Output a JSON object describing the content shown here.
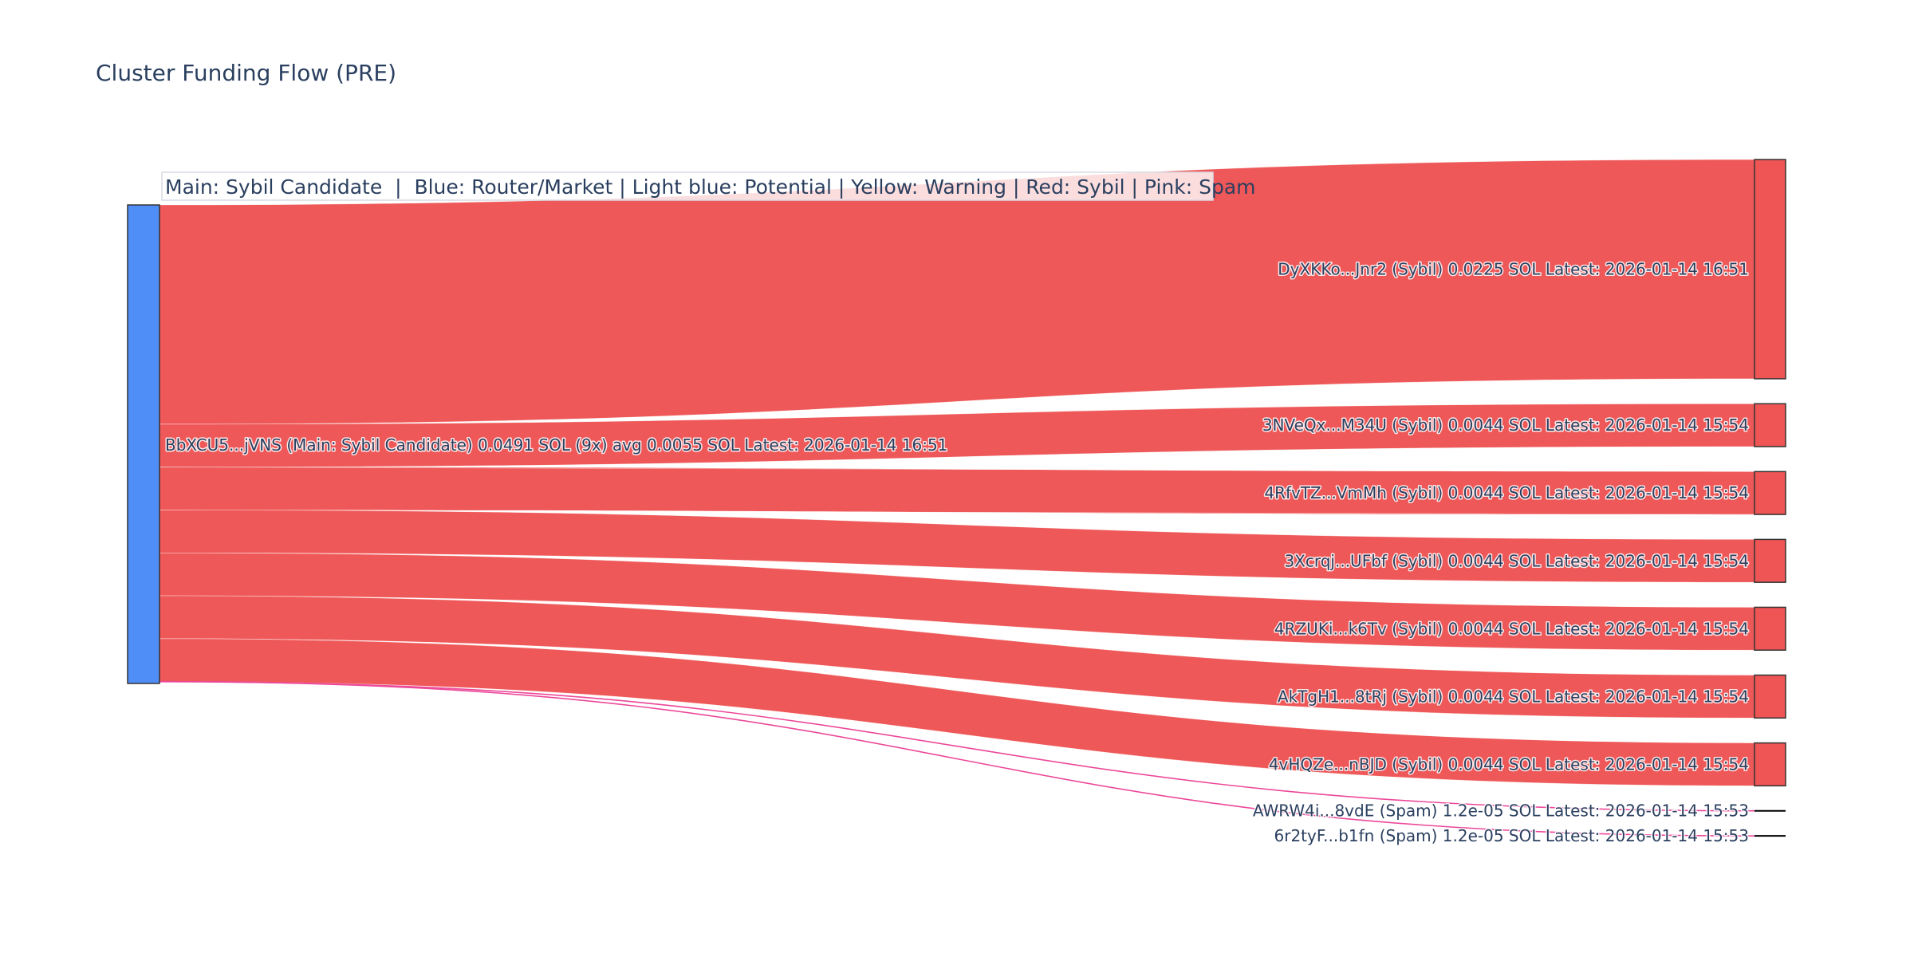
{
  "chart_data": {
    "type": "sankey",
    "title": "Cluster Funding Flow (PRE)",
    "annotation": "Main: Sybil Candidate  |  Blue: Router/Market | Light blue: Potential | Yellow: Warning | Red: Sybil | Pink: Spam",
    "colors": {
      "main_node": "#4f8ef7",
      "sybil": "#ef5555",
      "spam_link": "#ec4899",
      "node_outline": "#333333"
    },
    "source": {
      "label": "BbXCU5...jVNS (Main: Sybil Candidate) 0.0491 SOL (9x) avg 0.0055 SOL Latest: 2026-01-14 16:51",
      "value": 0.0491
    },
    "targets": [
      {
        "label": "DyXKKo...Jnr2 (Sybil) 0.0225 SOL Latest: 2026-01-14 16:51",
        "value": 0.0225,
        "type": "sybil"
      },
      {
        "label": "3NVeQx...M34U (Sybil) 0.0044 SOL Latest: 2026-01-14 15:54",
        "value": 0.0044,
        "type": "sybil"
      },
      {
        "label": "4RfvTZ...VmMh (Sybil) 0.0044 SOL Latest: 2026-01-14 15:54",
        "value": 0.0044,
        "type": "sybil"
      },
      {
        "label": "3Xcrqj...UFbf (Sybil) 0.0044 SOL Latest: 2026-01-14 15:54",
        "value": 0.0044,
        "type": "sybil"
      },
      {
        "label": "4RZUKi...k6Tv (Sybil) 0.0044 SOL Latest: 2026-01-14 15:54",
        "value": 0.0044,
        "type": "sybil"
      },
      {
        "label": "AkTgH1...8tRj (Sybil) 0.0044 SOL Latest: 2026-01-14 15:54",
        "value": 0.0044,
        "type": "sybil"
      },
      {
        "label": "4vHQZe...nBJD (Sybil) 0.0044 SOL Latest: 2026-01-14 15:54",
        "value": 0.0044,
        "type": "sybil"
      },
      {
        "label": "AWRW4i...8vdE (Spam) 1.2e-05 SOL Latest: 2026-01-14 15:53",
        "value": 1.2e-05,
        "type": "spam"
      },
      {
        "label": "6r2tyF...b1fn (Spam) 1.2e-05 SOL Latest: 2026-01-14 15:53",
        "value": 1.2e-05,
        "type": "spam"
      }
    ]
  }
}
